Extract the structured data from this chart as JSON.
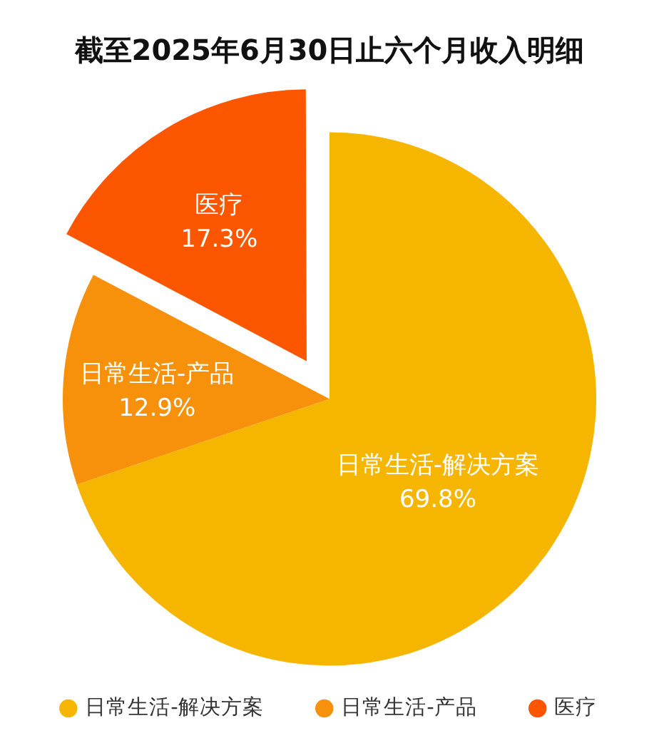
{
  "chart_data": {
    "type": "pie",
    "title": "截至2025年6月30日止六个月收入明细",
    "categories": [
      "日常生活-解决方案",
      "日常生活-产品",
      "医疗"
    ],
    "values": [
      69.8,
      12.9,
      17.3
    ],
    "colors": [
      "#f6b600",
      "#f7910b",
      "#fc5700"
    ],
    "value_labels": [
      "69.8%",
      "12.9%",
      "17.3%"
    ],
    "legend": "bottom"
  }
}
